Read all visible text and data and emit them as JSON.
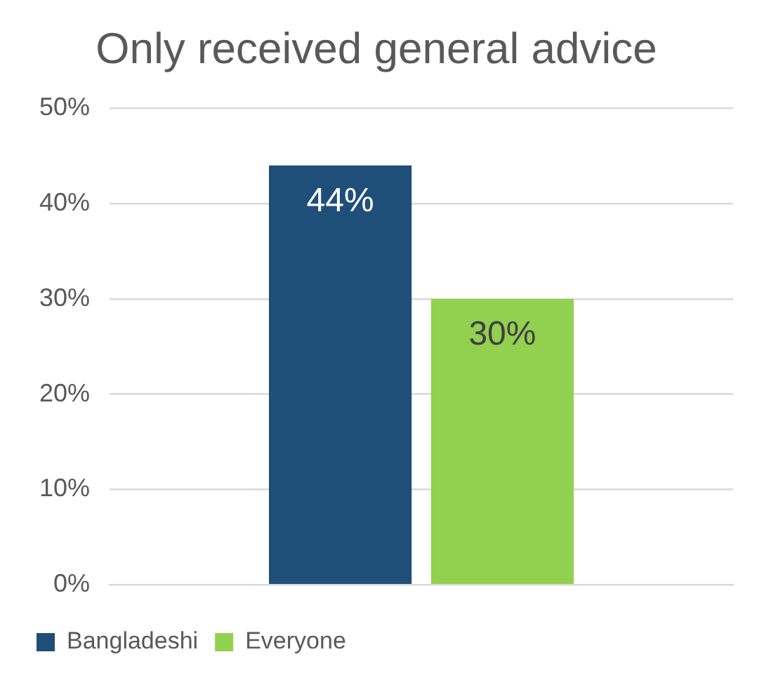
{
  "chart_data": {
    "type": "bar",
    "title": "Only received general advice",
    "categories": [
      null
    ],
    "series": [
      {
        "name": "Bangladeshi",
        "color": "#1f4e79",
        "values": [
          44
        ],
        "value_labels": [
          "44%"
        ]
      },
      {
        "name": "Everyone",
        "color": "#92d050",
        "values": [
          30
        ],
        "value_labels": [
          "30%"
        ]
      }
    ],
    "ylim": [
      0,
      50
    ],
    "yticks": [
      {
        "value": 0,
        "label": "0%"
      },
      {
        "value": 10,
        "label": "10%"
      },
      {
        "value": 20,
        "label": "20%"
      },
      {
        "value": 30,
        "label": "30%"
      },
      {
        "value": 40,
        "label": "40%"
      },
      {
        "value": 50,
        "label": "50%"
      }
    ],
    "grid": "y",
    "legend": "bottom left"
  }
}
